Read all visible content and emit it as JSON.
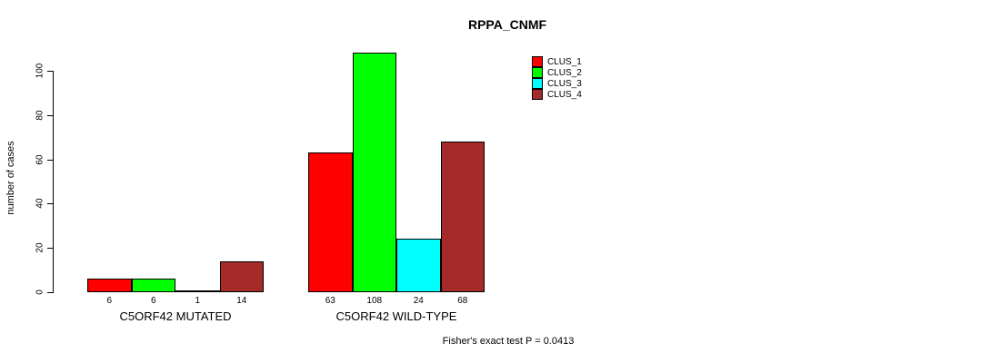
{
  "chart_data": {
    "type": "bar",
    "title": "RPPA_CNMF",
    "ylabel": "number of cases",
    "ylim": [
      0,
      100
    ],
    "yticks": [
      0,
      20,
      40,
      60,
      80,
      100
    ],
    "grid": false,
    "legend_position": "top-right",
    "categories": [
      "C5ORF42 MUTATED",
      "C5ORF42 WILD-TYPE"
    ],
    "series": [
      {
        "name": "CLUS_1",
        "color": "#FF0000",
        "values": [
          6,
          63
        ]
      },
      {
        "name": "CLUS_2",
        "color": "#00FF00",
        "values": [
          6,
          108
        ]
      },
      {
        "name": "CLUS_3",
        "color": "#00FFFF",
        "values": [
          1,
          24
        ]
      },
      {
        "name": "CLUS_4",
        "color": "#A52A2A",
        "values": [
          14,
          68
        ]
      }
    ],
    "bar_value_labels": true,
    "footnote": "Fisher's exact test P = 0.0413"
  }
}
